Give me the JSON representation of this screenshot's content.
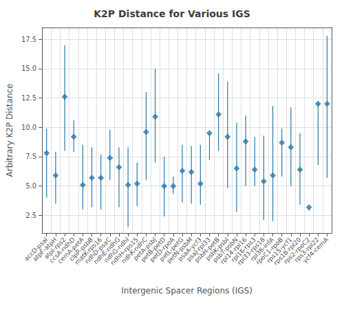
{
  "chart_data": {
    "type": "errorbar",
    "title": "K2P Distance for Various IGS",
    "xlabel": "Intergenic Spacer Regions (IGS)",
    "ylabel": "Arbitrary K2P Distance",
    "ylim": [
      1.0,
      18.5
    ],
    "yticks": [
      2.5,
      {
        "value": 5.0,
        "label": "5.0"
      },
      7.5,
      {
        "value": 10.0,
        "label": "10.0"
      },
      12.5,
      {
        "value": 15.0,
        "label": "15.0"
      },
      17.5
    ],
    "color": "#2878a8",
    "marker": "diamond",
    "grid": true,
    "categories": [
      "accD-psal",
      "atpF-atpH",
      "atpl-rps2",
      "ccsA-ndhD",
      "cemA-petA",
      "clpP-psbB",
      "matK-rps16",
      "ndhD-psaC",
      "ndhE-ndhG",
      "ndhG-ndhI",
      "ndhH-rps15",
      "ndhK-ndhC",
      "petA-psbJ",
      "petB-petD",
      "petD-rpoA",
      "petL-petG",
      "petN-psbM",
      "psaA-ycf3",
      "psaJ-rpl33",
      "psbH-petB",
      "psbK-psbI",
      "psbT-psbN",
      "rpl14-rpl16",
      "rpl16-rps3",
      "rpl33-rps18",
      "rpl36-infA",
      "rpoC1-rpoB",
      "rps15-ycf1",
      "rps18-rpl20",
      "rps2-rpoC2",
      "rps3-rpl22",
      "ycf4-cemA"
    ],
    "values": [
      7.8,
      5.9,
      12.6,
      9.2,
      5.1,
      5.7,
      5.7,
      7.4,
      6.6,
      5.1,
      5.2,
      9.6,
      10.9,
      5.0,
      5.0,
      6.3,
      6.2,
      5.2,
      9.5,
      11.1,
      9.2,
      6.5,
      8.8,
      6.4,
      5.4,
      5.9,
      8.7,
      8.3,
      6.4,
      3.2,
      12.0,
      12.0
    ],
    "lower": [
      4.0,
      3.5,
      8.0,
      7.9,
      3.0,
      3.2,
      3.0,
      5.5,
      3.2,
      1.5,
      3.3,
      5.5,
      7.0,
      2.4,
      4.3,
      3.6,
      3.5,
      3.4,
      7.2,
      8.0,
      4.8,
      2.8,
      5.0,
      5.0,
      2.1,
      2.0,
      5.8,
      5.0,
      3.4,
      2.9,
      6.8,
      5.7
    ],
    "upper": [
      9.9,
      7.9,
      17.0,
      10.6,
      8.5,
      8.3,
      7.7,
      9.8,
      8.3,
      8.3,
      7.0,
      13.0,
      15.0,
      7.5,
      5.8,
      8.5,
      8.4,
      8.5,
      9.5,
      14.6,
      13.9,
      10.4,
      11.0,
      9.2,
      9.3,
      11.8,
      9.9,
      11.7,
      9.5,
      3.2,
      12.0,
      17.8
    ]
  }
}
